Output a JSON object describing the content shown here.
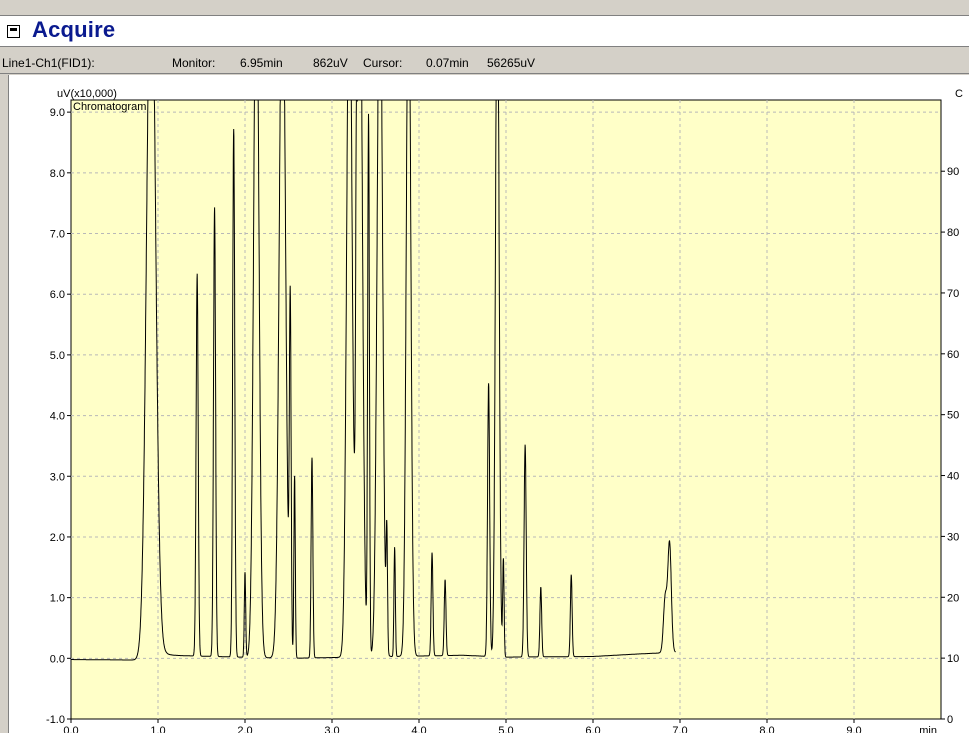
{
  "window": {
    "title": "Acquire",
    "system_icon": "window-menu-icon"
  },
  "status": {
    "channel": "Line1-Ch1(FID1):",
    "monitor_label": "Monitor:",
    "monitor_time": "6.95min",
    "monitor_value": "862uV",
    "cursor_label": "Cursor:",
    "cursor_time": "0.07min",
    "cursor_value": "56265uV"
  },
  "colors": {
    "plot_background": "#ffffc8",
    "trace": "#000000",
    "grid": "#b8b8b8"
  },
  "chart_data": {
    "type": "line",
    "title": "Chromatogram",
    "ylabel": "uV(x10,000)",
    "xlabel": "min",
    "y2label": "C",
    "xlim": [
      0.0,
      10.0
    ],
    "ylim": [
      -1.0,
      9.2
    ],
    "y2lim": [
      0,
      101.7
    ],
    "x_ticks": [
      "0.0",
      "1.0",
      "2.0",
      "3.0",
      "4.0",
      "5.0",
      "6.0",
      "7.0",
      "8.0",
      "9.0"
    ],
    "y_ticks": [
      "-1.0",
      "0.0",
      "1.0",
      "2.0",
      "3.0",
      "4.0",
      "5.0",
      "6.0",
      "7.0",
      "8.0",
      "9.0"
    ],
    "y2_ticks": [
      "0",
      "10",
      "20",
      "30",
      "40",
      "50",
      "60",
      "70",
      "80",
      "90"
    ],
    "grid": true,
    "baseline": [
      {
        "x": 0.0,
        "y": -0.02
      },
      {
        "x": 0.85,
        "y": -0.03
      },
      {
        "x": 1.1,
        "y": 0.05
      },
      {
        "x": 2.5,
        "y": 0.0
      },
      {
        "x": 4.5,
        "y": 0.05
      },
      {
        "x": 5.0,
        "y": 0.02
      },
      {
        "x": 6.0,
        "y": 0.03
      },
      {
        "x": 6.5,
        "y": 0.07
      },
      {
        "x": 6.95,
        "y": 0.1
      }
    ],
    "peaks": [
      {
        "time": 0.92,
        "height": 12.0,
        "width": 0.05,
        "tail": true
      },
      {
        "time": 1.45,
        "height": 6.3,
        "width": 0.012
      },
      {
        "time": 1.65,
        "height": 7.4,
        "width": 0.012
      },
      {
        "time": 1.87,
        "height": 8.7,
        "width": 0.012
      },
      {
        "time": 2.0,
        "height": 1.4,
        "width": 0.008
      },
      {
        "time": 2.13,
        "height": 12.0,
        "width": 0.03
      },
      {
        "time": 2.43,
        "height": 12.0,
        "width": 0.035
      },
      {
        "time": 2.52,
        "height": 5.7,
        "width": 0.01
      },
      {
        "time": 2.57,
        "height": 3.0,
        "width": 0.008
      },
      {
        "time": 2.77,
        "height": 3.3,
        "width": 0.01
      },
      {
        "time": 3.2,
        "height": 12.0,
        "width": 0.03
      },
      {
        "time": 3.28,
        "height": 4.0,
        "width": 0.008
      },
      {
        "time": 3.32,
        "height": 12.0,
        "width": 0.03
      },
      {
        "time": 3.42,
        "height": 8.9,
        "width": 0.01
      },
      {
        "time": 3.55,
        "height": 12.0,
        "width": 0.03
      },
      {
        "time": 3.63,
        "height": 1.9,
        "width": 0.008
      },
      {
        "time": 3.72,
        "height": 1.8,
        "width": 0.008
      },
      {
        "time": 3.88,
        "height": 12.0,
        "width": 0.025
      },
      {
        "time": 4.15,
        "height": 1.7,
        "width": 0.01
      },
      {
        "time": 4.3,
        "height": 1.25,
        "width": 0.01
      },
      {
        "time": 4.8,
        "height": 4.5,
        "width": 0.012
      },
      {
        "time": 4.9,
        "height": 12.0,
        "width": 0.02
      },
      {
        "time": 4.97,
        "height": 1.6,
        "width": 0.008
      },
      {
        "time": 5.22,
        "height": 3.5,
        "width": 0.012
      },
      {
        "time": 5.4,
        "height": 1.15,
        "width": 0.01
      },
      {
        "time": 5.75,
        "height": 1.35,
        "width": 0.01
      },
      {
        "time": 6.83,
        "height": 0.9,
        "width": 0.02
      },
      {
        "time": 6.88,
        "height": 1.8,
        "width": 0.02
      }
    ]
  }
}
